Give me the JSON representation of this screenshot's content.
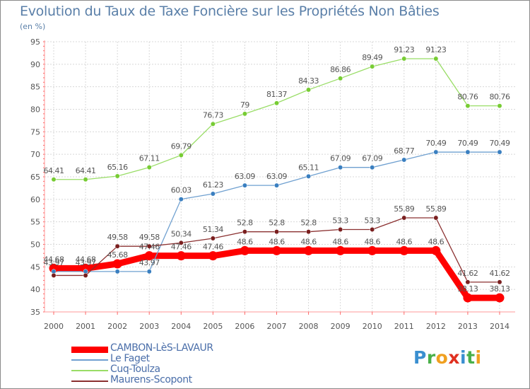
{
  "title": "Evolution du Taux de Taxe Foncière sur les Propriétés Non Bâties",
  "subtitle": "(en %)",
  "logo": {
    "letters": [
      "P",
      "r",
      "o",
      "x",
      "i",
      "t",
      "i"
    ],
    "colors": [
      "#3a8fd0",
      "#4ab04a",
      "#f0a020",
      "#e03020",
      "#3a8fd0",
      "#4ab04a",
      "#f0a020"
    ]
  },
  "chart_data": {
    "type": "line",
    "title": "Evolution du Taux de Taxe Foncière sur les Propriétés Non Bâties",
    "ylabel": "(en %)",
    "xlabel": "",
    "ylim": [
      35,
      95
    ],
    "yticks": [
      35,
      40,
      45,
      50,
      55,
      60,
      65,
      70,
      75,
      80,
      85,
      90,
      95
    ],
    "categories": [
      "2000",
      "2001",
      "2002",
      "2003",
      "2004",
      "2005",
      "2006",
      "2007",
      "2008",
      "2009",
      "2010",
      "2011",
      "2012",
      "2013",
      "2014"
    ],
    "series": [
      {
        "name": "CAMBON-LèS-LAVAUR",
        "color": "#ff0000",
        "marker_color": "#ff0000",
        "values": [
          44.68,
          44.68,
          45.68,
          47.46,
          47.46,
          47.46,
          48.6,
          48.6,
          48.6,
          48.6,
          48.6,
          48.6,
          48.6,
          38.13,
          38.13
        ],
        "labels": [
          "44.68",
          "44.68",
          "45.68",
          "47.46",
          "47.46",
          "47.46",
          "48.6",
          "48.6",
          "48.6",
          "48.6",
          "48.6",
          "48.6",
          "48.6",
          "38.13",
          "38.13"
        ]
      },
      {
        "name": "Le Faget",
        "color": "#6fa0d0",
        "marker_color": "#3a7fc0",
        "values": [
          43.97,
          43.97,
          43.97,
          43.97,
          60.03,
          61.23,
          63.09,
          63.09,
          65.11,
          67.09,
          67.09,
          68.77,
          70.49,
          70.49,
          70.49
        ],
        "labels": [
          "43.97",
          "43.97",
          "",
          "43.97",
          "60.03",
          "61.23",
          "63.09",
          "63.09",
          "65.11",
          "67.09",
          "67.09",
          "68.77",
          "70.49",
          "70.49",
          "70.49"
        ]
      },
      {
        "name": "Cuq-Toulza",
        "color": "#99dd66",
        "marker_color": "#77cc33",
        "values": [
          64.41,
          64.41,
          65.16,
          67.11,
          69.79,
          76.73,
          79,
          81.37,
          84.33,
          86.86,
          89.49,
          91.23,
          91.23,
          80.76,
          80.76
        ],
        "labels": [
          "64.41",
          "64.41",
          "65.16",
          "67.11",
          "69.79",
          "76.73",
          "79",
          "81.37",
          "84.33",
          "86.86",
          "89.49",
          "91.23",
          "91.23",
          "80.76",
          "80.76"
        ]
      },
      {
        "name": "Maurens-Scopont",
        "color": "#8b3030",
        "marker_color": "#7a1f1f",
        "values": [
          43.1,
          43.1,
          49.58,
          49.58,
          50.34,
          51.34,
          52.8,
          52.8,
          52.8,
          53.3,
          53.3,
          55.89,
          55.89,
          41.62,
          41.62
        ],
        "labels": [
          "",
          "",
          "49.58",
          "49.58",
          "50.34",
          "51.34",
          "52.8",
          "52.8",
          "52.8",
          "53.3",
          "53.3",
          "55.89",
          "55.89",
          "41.62",
          "41.62"
        ]
      }
    ]
  }
}
